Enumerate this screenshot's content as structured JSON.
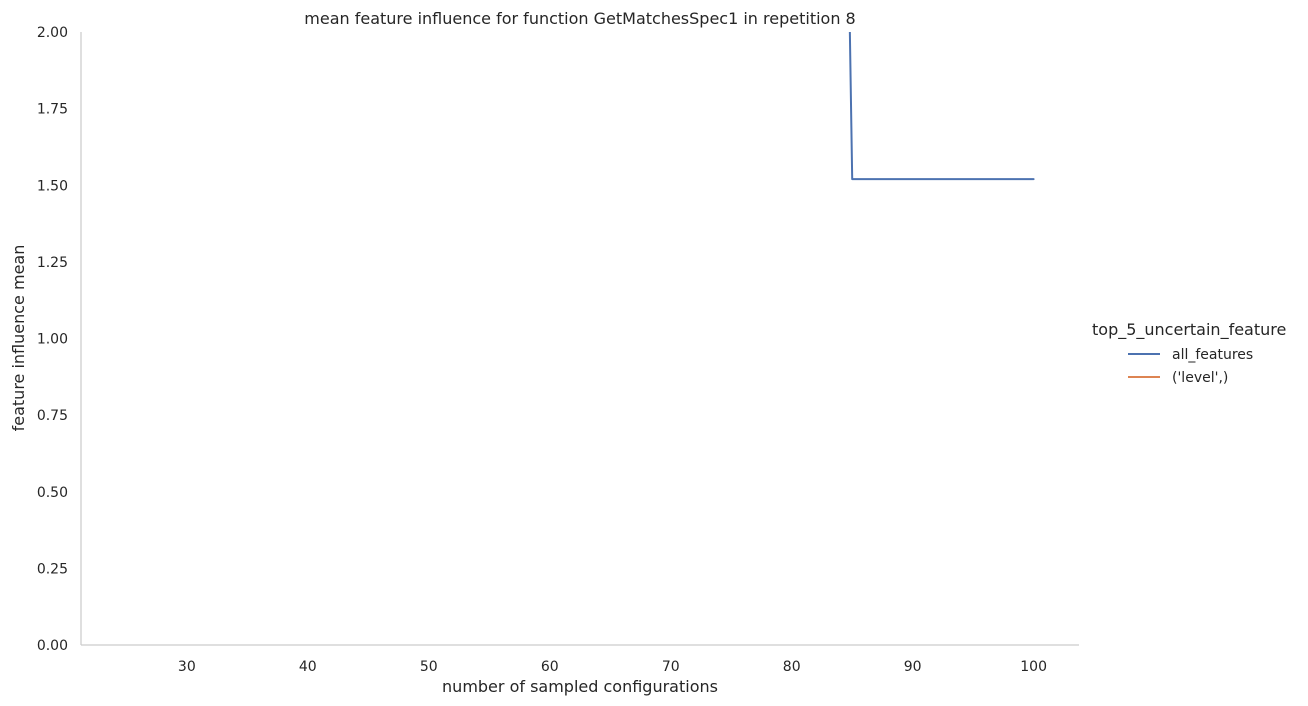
{
  "chart_data": {
    "type": "line",
    "title": "mean feature influence for function GetMatchesSpec1 in repetition 8",
    "xlabel": "number of sampled configurations",
    "ylabel": "feature influence mean",
    "xlim": [
      21.25,
      103.75
    ],
    "ylim": [
      0,
      2.0
    ],
    "xticks": [
      30,
      40,
      50,
      60,
      70,
      80,
      90,
      100
    ],
    "yticks": [
      0.0,
      0.25,
      0.5,
      0.75,
      1.0,
      1.25,
      1.5,
      1.75,
      2.0
    ],
    "ytick_labels": [
      "0.00",
      "0.25",
      "0.50",
      "0.75",
      "1.00",
      "1.25",
      "1.50",
      "1.75",
      "2.00"
    ],
    "grid": false,
    "legend": {
      "title": "top_5_uncertain_feature",
      "placement": "right"
    },
    "series": [
      {
        "name": "all_features",
        "color": "#4c72b0",
        "x": [
          84,
          85,
          90,
          95,
          100
        ],
        "y": [
          4.0,
          1.52,
          1.52,
          1.52,
          1.52
        ]
      },
      {
        "name": "('level',)",
        "color": "#dd8452",
        "x": [],
        "y": []
      }
    ]
  }
}
